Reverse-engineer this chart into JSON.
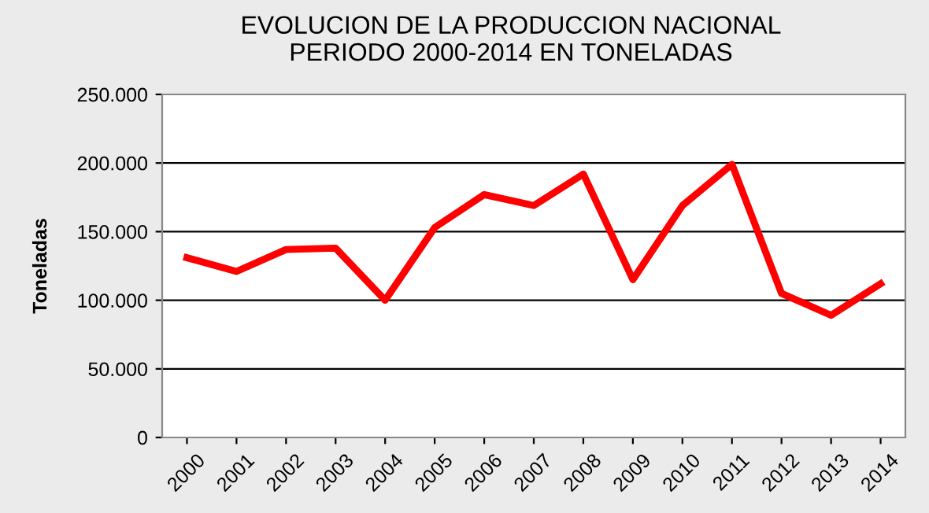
{
  "chart_data": {
    "type": "line",
    "title": "EVOLUCION DE LA PRODUCCION NACIONAL\nPERIODO 2000-2014 EN TONELADAS",
    "ylabel": "Toneladas",
    "categories": [
      "2000",
      "2001",
      "2002",
      "2003",
      "2004",
      "2005",
      "2006",
      "2007",
      "2008",
      "2009",
      "2010",
      "2011",
      "2012",
      "2013",
      "2014"
    ],
    "series": [
      {
        "color": "#ff0000",
        "values": [
          131000,
          121000,
          137000,
          138000,
          100000,
          153000,
          177000,
          169000,
          192000,
          115000,
          169000,
          199000,
          105000,
          89000,
          112000
        ]
      }
    ],
    "ylim": [
      0,
      250000
    ],
    "yticks": [
      {
        "value": 0,
        "label": "0"
      },
      {
        "value": 50000,
        "label": "50.000"
      },
      {
        "value": 100000,
        "label": "100.000"
      },
      {
        "value": 150000,
        "label": "150.000"
      },
      {
        "value": 200000,
        "label": "200.000"
      },
      {
        "value": 250000,
        "label": "250.000"
      }
    ],
    "grid": "y",
    "legend": false,
    "marker": "none",
    "line_style": "solid"
  }
}
